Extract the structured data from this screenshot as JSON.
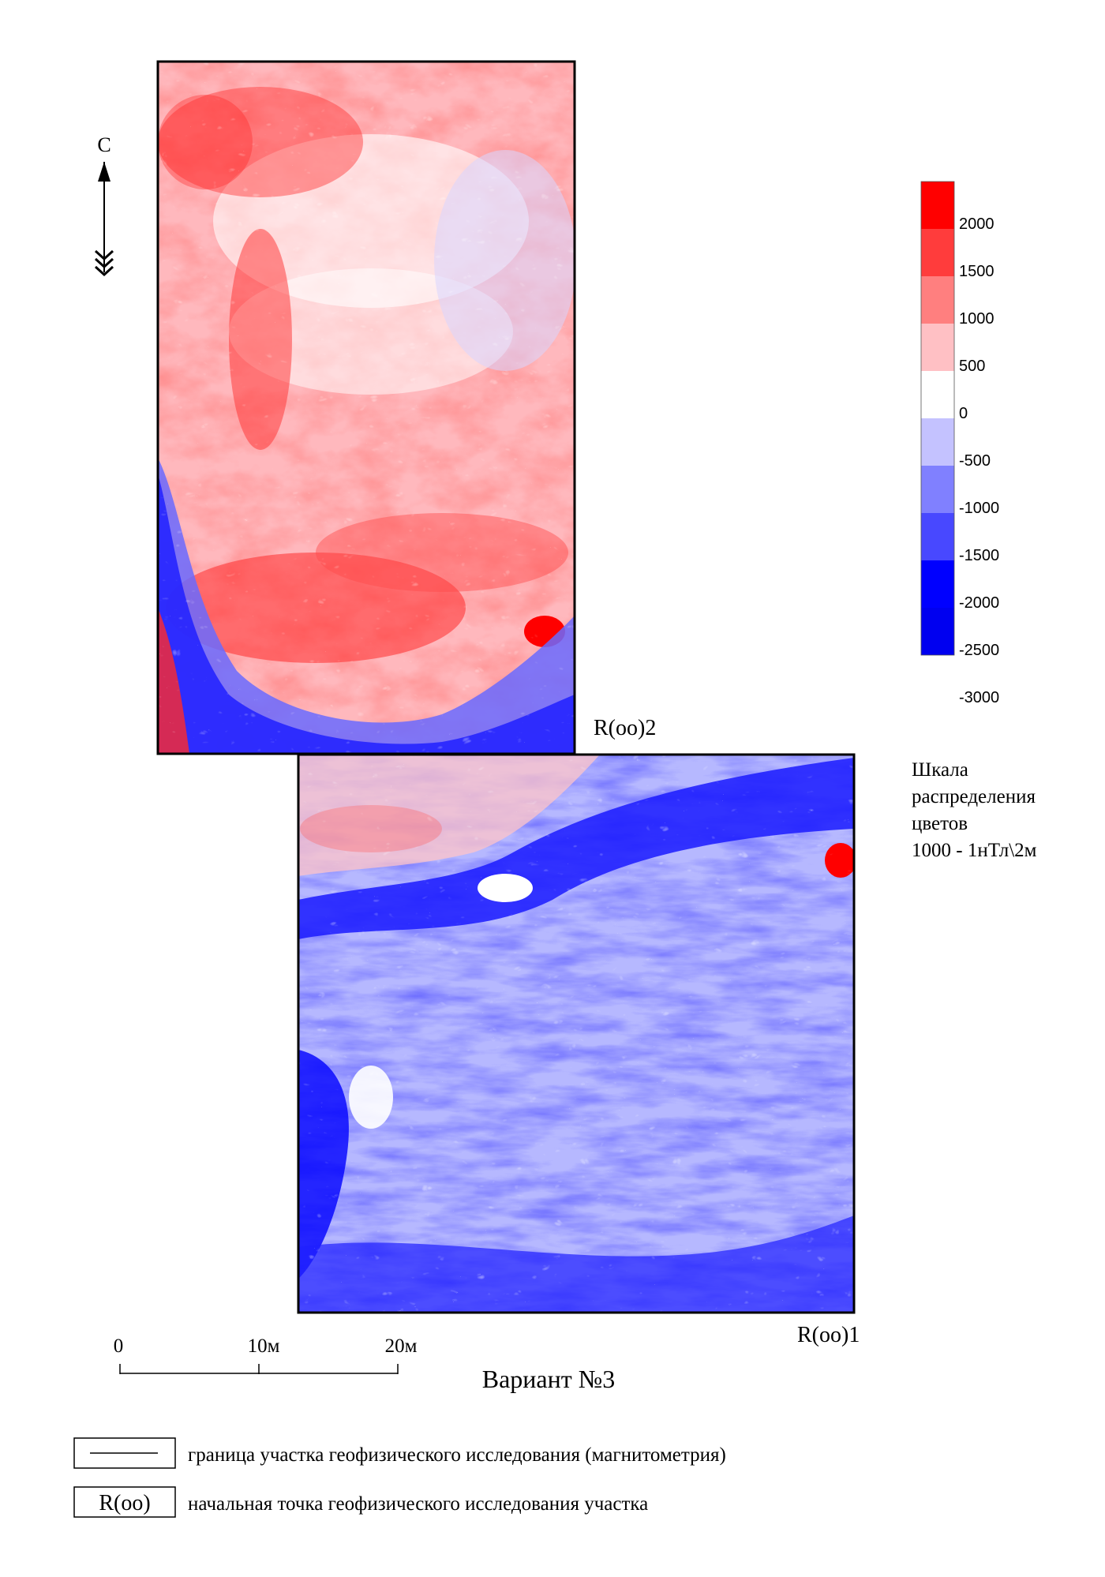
{
  "north_label": "С",
  "color_scale": {
    "ticks": [
      "2000",
      "1500",
      "1000",
      "500",
      "0",
      "-500",
      "-1000",
      "-1500",
      "-2000",
      "-2500",
      "-3000"
    ],
    "colors": [
      "#ff0000",
      "#ff3c3c",
      "#ff7f7f",
      "#ffc0c4",
      "#ffffff",
      "#c4c2ff",
      "#8080ff",
      "#4848ff",
      "#0000ff",
      "#0000f0"
    ],
    "caption_lines": [
      "Шкала",
      "распределения",
      "цветов",
      "1000 - 1нТл\\2м"
    ]
  },
  "survey_points": {
    "upper": "R(oo)2",
    "lower": "R(oo)1"
  },
  "scale_bar": {
    "labels": [
      "0",
      "10м",
      "20м"
    ]
  },
  "title": "Вариант №3",
  "legend": [
    {
      "symbol": "line",
      "text": "граница участка геофизического исследования (магнитометрия)"
    },
    {
      "symbol": "R(oo)",
      "text": "начальная точка геофизического исследования участка"
    }
  ]
}
